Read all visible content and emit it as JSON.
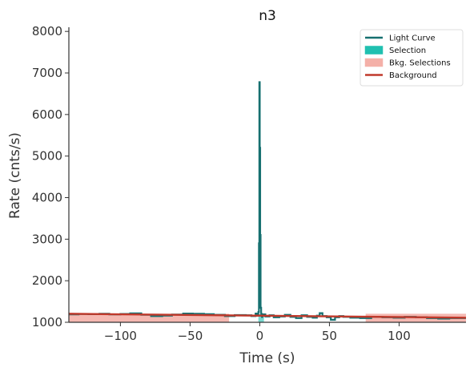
{
  "chart_data": {
    "type": "line",
    "title": "n3",
    "xlabel": "Time (s)",
    "ylabel": "Rate (cnts/s)",
    "xlim": [
      -137,
      148
    ],
    "ylim": [
      1000,
      8100
    ],
    "x_ticks": [
      -100,
      -50,
      0,
      50,
      100
    ],
    "x_tick_labels": [
      "−100",
      "−50",
      "0",
      "50",
      "100"
    ],
    "y_ticks": [
      1000,
      2000,
      3000,
      4000,
      5000,
      6000,
      7000,
      8000
    ],
    "y_tick_labels": [
      "1000",
      "2000",
      "3000",
      "4000",
      "5000",
      "6000",
      "7000",
      "8000"
    ],
    "grid": false,
    "legend_position": "top-right",
    "legend": [
      {
        "label": "Light Curve",
        "kind": "line",
        "color": "#167070"
      },
      {
        "label": "Selection",
        "kind": "patch",
        "color": "#20c0b0"
      },
      {
        "label": "Bkg. Selections",
        "kind": "patch",
        "color": "#f4b0a8"
      },
      {
        "label": "Background",
        "kind": "line",
        "color": "#c0392b"
      }
    ],
    "series": [
      {
        "name": "Light Curve",
        "style": "steps",
        "color": "#167070",
        "x": [
          -137,
          -130,
          -123,
          -115,
          -108,
          -100,
          -93,
          -85,
          -78,
          -70,
          -63,
          -55,
          -48,
          -40,
          -33,
          -25,
          -18,
          -10,
          -6,
          -3,
          -2,
          -1,
          -0.6,
          -0.3,
          0,
          0.3,
          0.6,
          1,
          1.5,
          2,
          4,
          7,
          10,
          14,
          18,
          22,
          26,
          30,
          34,
          38,
          41,
          43,
          45,
          48,
          51,
          54,
          57,
          60,
          65,
          72,
          80,
          88,
          96,
          104,
          112,
          120,
          128,
          136,
          148
        ],
        "y": [
          1190,
          1200,
          1195,
          1205,
          1190,
          1200,
          1215,
          1180,
          1150,
          1160,
          1185,
          1210,
          1205,
          1195,
          1180,
          1150,
          1175,
          1170,
          1150,
          1210,
          1160,
          1250,
          2900,
          6780,
          5200,
          3100,
          1350,
          1200,
          1130,
          1190,
          1140,
          1170,
          1120,
          1140,
          1180,
          1130,
          1100,
          1170,
          1130,
          1110,
          1160,
          1220,
          1150,
          1120,
          1060,
          1120,
          1150,
          1130,
          1110,
          1100,
          1130,
          1120,
          1110,
          1130,
          1120,
          1100,
          1090,
          1100,
          1100
        ]
      },
      {
        "name": "Background",
        "style": "line",
        "color": "#c0392b",
        "x": [
          -137,
          148
        ],
        "y": [
          1205,
          1110
        ]
      }
    ],
    "selection": {
      "name": "Selection",
      "color": "#20c0b0",
      "x_range": [
        -1,
        3
      ]
    },
    "bkg_selections": {
      "name": "Bkg. Selections",
      "color": "#f4b0a8",
      "ranges": [
        [
          -137,
          -22
        ],
        [
          76,
          148
        ]
      ]
    }
  }
}
